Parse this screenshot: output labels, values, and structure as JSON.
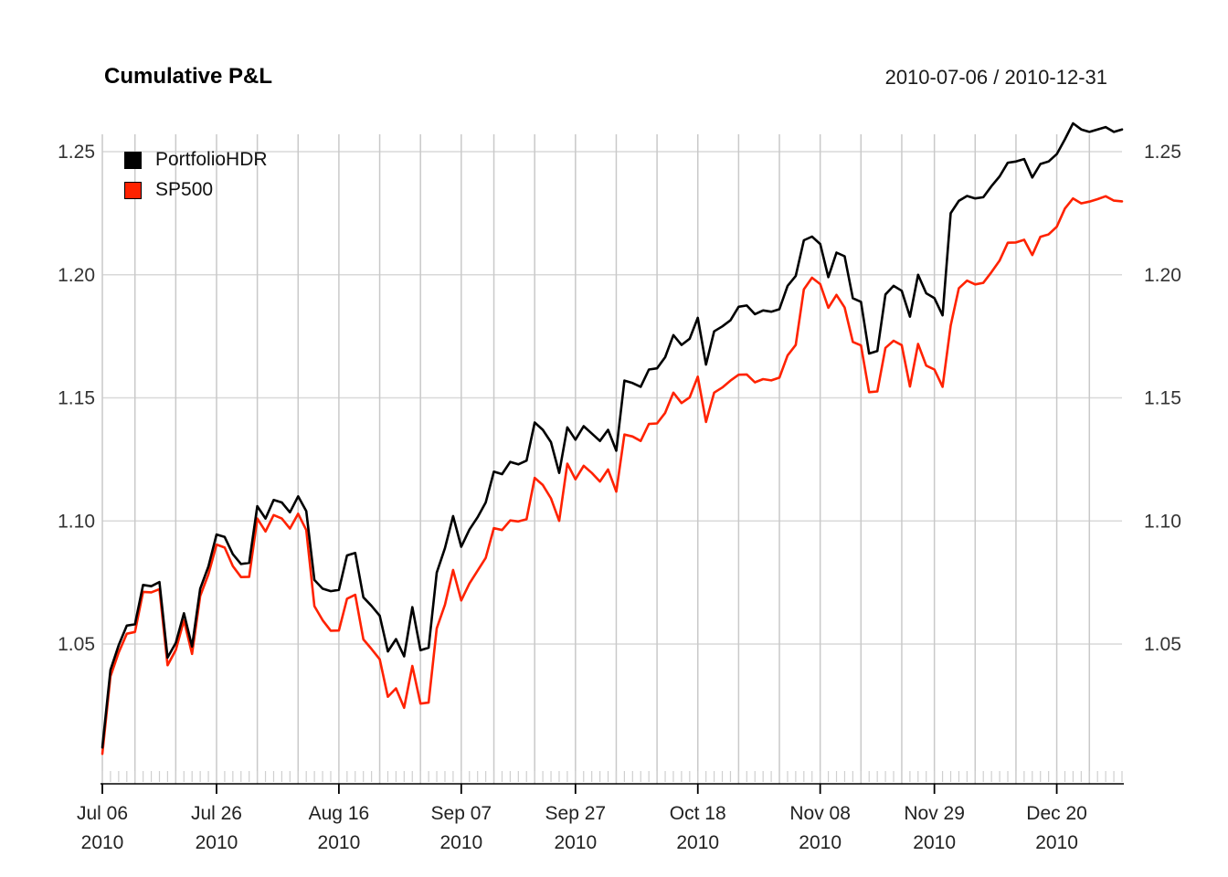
{
  "header": {
    "title": "Cumulative P&L",
    "date_range": "2010-07-06 / 2010-12-31"
  },
  "legend": {
    "items": [
      {
        "label": "PortfolioHDR",
        "color": "#000000"
      },
      {
        "label": "SP500",
        "color": "#ff2200"
      }
    ]
  },
  "chart_data": {
    "type": "line",
    "title": "Cumulative P&L",
    "subtitle": "2010-07-06 / 2010-12-31",
    "grid": true,
    "legend_position": "top-left",
    "ylim": [
      1.0,
      1.27
    ],
    "yticks": [
      {
        "value": 1.05,
        "label": "1.05"
      },
      {
        "value": 1.1,
        "label": "1.10"
      },
      {
        "value": 1.15,
        "label": "1.15"
      },
      {
        "value": 1.2,
        "label": "1.20"
      },
      {
        "value": 1.25,
        "label": "1.25"
      }
    ],
    "x_major_ticks": [
      {
        "index": 0,
        "line1": "Jul 06",
        "line2": "2010"
      },
      {
        "index": 14,
        "line1": "Jul 26",
        "line2": "2010"
      },
      {
        "index": 29,
        "line1": "Aug 16",
        "line2": "2010"
      },
      {
        "index": 44,
        "line1": "Sep 07",
        "line2": "2010"
      },
      {
        "index": 58,
        "line1": "Sep 27",
        "line2": "2010"
      },
      {
        "index": 73,
        "line1": "Oct 18",
        "line2": "2010"
      },
      {
        "index": 88,
        "line1": "Nov 08",
        "line2": "2010"
      },
      {
        "index": 102,
        "line1": "Nov 29",
        "line2": "2010"
      },
      {
        "index": 117,
        "line1": "Dec 20",
        "line2": "2010"
      }
    ],
    "x_gridline_indices": [
      0,
      4,
      9,
      14,
      19,
      24,
      29,
      34,
      39,
      44,
      48,
      53,
      58,
      63,
      68,
      73,
      78,
      83,
      88,
      93,
      98,
      102,
      107,
      112,
      117,
      121
    ],
    "x_dates": [
      "2010-07-06",
      "2010-07-07",
      "2010-07-08",
      "2010-07-09",
      "2010-07-12",
      "2010-07-13",
      "2010-07-14",
      "2010-07-15",
      "2010-07-16",
      "2010-07-19",
      "2010-07-20",
      "2010-07-21",
      "2010-07-22",
      "2010-07-23",
      "2010-07-26",
      "2010-07-27",
      "2010-07-28",
      "2010-07-29",
      "2010-07-30",
      "2010-08-02",
      "2010-08-03",
      "2010-08-04",
      "2010-08-05",
      "2010-08-06",
      "2010-08-09",
      "2010-08-10",
      "2010-08-11",
      "2010-08-12",
      "2010-08-13",
      "2010-08-16",
      "2010-08-17",
      "2010-08-18",
      "2010-08-19",
      "2010-08-20",
      "2010-08-23",
      "2010-08-24",
      "2010-08-25",
      "2010-08-26",
      "2010-08-27",
      "2010-08-30",
      "2010-08-31",
      "2010-09-01",
      "2010-09-02",
      "2010-09-03",
      "2010-09-07",
      "2010-09-08",
      "2010-09-09",
      "2010-09-10",
      "2010-09-13",
      "2010-09-14",
      "2010-09-15",
      "2010-09-16",
      "2010-09-17",
      "2010-09-20",
      "2010-09-21",
      "2010-09-22",
      "2010-09-23",
      "2010-09-24",
      "2010-09-27",
      "2010-09-28",
      "2010-09-29",
      "2010-09-30",
      "2010-10-01",
      "2010-10-04",
      "2010-10-05",
      "2010-10-06",
      "2010-10-07",
      "2010-10-08",
      "2010-10-11",
      "2010-10-12",
      "2010-10-13",
      "2010-10-14",
      "2010-10-15",
      "2010-10-18",
      "2010-10-19",
      "2010-10-20",
      "2010-10-21",
      "2010-10-22",
      "2010-10-25",
      "2010-10-26",
      "2010-10-27",
      "2010-10-28",
      "2010-10-29",
      "2010-11-01",
      "2010-11-02",
      "2010-11-03",
      "2010-11-04",
      "2010-11-05",
      "2010-11-08",
      "2010-11-09",
      "2010-11-10",
      "2010-11-11",
      "2010-11-12",
      "2010-11-15",
      "2010-11-16",
      "2010-11-17",
      "2010-11-18",
      "2010-11-19",
      "2010-11-22",
      "2010-11-23",
      "2010-11-24",
      "2010-11-26",
      "2010-11-29",
      "2010-11-30",
      "2010-12-01",
      "2010-12-02",
      "2010-12-03",
      "2010-12-06",
      "2010-12-07",
      "2010-12-08",
      "2010-12-09",
      "2010-12-10",
      "2010-12-13",
      "2010-12-14",
      "2010-12-15",
      "2010-12-16",
      "2010-12-17",
      "2010-12-20",
      "2010-12-21",
      "2010-12-22",
      "2010-12-23",
      "2010-12-27",
      "2010-12-28",
      "2010-12-29",
      "2010-12-30",
      "2010-12-31"
    ],
    "series": [
      {
        "name": "PortfolioHDR",
        "color": "#000000",
        "values": [
          1.008,
          1.0395,
          1.0495,
          1.0575,
          1.058,
          1.074,
          1.0735,
          1.0752,
          1.0445,
          1.0505,
          1.0625,
          1.049,
          1.0725,
          1.0815,
          1.0945,
          1.0935,
          1.0865,
          1.0825,
          1.083,
          1.106,
          1.101,
          1.1085,
          1.1075,
          1.1035,
          1.11,
          1.104,
          1.076,
          1.0725,
          1.0715,
          1.072,
          1.086,
          1.087,
          1.069,
          1.0655,
          1.0615,
          1.047,
          1.052,
          1.045,
          1.065,
          1.0475,
          1.0485,
          1.079,
          1.089,
          1.102,
          1.0895,
          1.0965,
          1.1015,
          1.1075,
          1.12,
          1.119,
          1.124,
          1.123,
          1.1245,
          1.14,
          1.137,
          1.132,
          1.1195,
          1.138,
          1.133,
          1.1385,
          1.1355,
          1.1325,
          1.137,
          1.1285,
          1.157,
          1.156,
          1.1545,
          1.1615,
          1.162,
          1.1665,
          1.1755,
          1.1715,
          1.174,
          1.1825,
          1.1635,
          1.177,
          1.179,
          1.1815,
          1.187,
          1.1875,
          1.184,
          1.1855,
          1.185,
          1.186,
          1.1955,
          1.1995,
          1.214,
          1.2155,
          1.2125,
          1.199,
          1.209,
          1.2075,
          1.1905,
          1.189,
          1.168,
          1.169,
          1.192,
          1.1955,
          1.1935,
          1.183,
          1.2,
          1.1925,
          1.1905,
          1.1835,
          1.225,
          1.23,
          1.232,
          1.231,
          1.2315,
          1.236,
          1.24,
          1.2455,
          1.246,
          1.247,
          1.2395,
          1.245,
          1.246,
          1.249,
          1.255,
          1.2615,
          1.259,
          1.258,
          1.259,
          1.26,
          1.258,
          1.259
        ]
      },
      {
        "name": "SP500",
        "color": "#ff2200",
        "values": [
          1.0054,
          1.0369,
          1.0466,
          1.0542,
          1.0549,
          1.0712,
          1.071,
          1.0723,
          1.0414,
          1.0476,
          1.0596,
          1.046,
          1.0695,
          1.0783,
          1.0904,
          1.0892,
          1.0817,
          1.0772,
          1.0773,
          1.101,
          1.0957,
          1.1024,
          1.101,
          1.0969,
          1.1029,
          1.0963,
          1.0654,
          1.0597,
          1.0554,
          1.0555,
          1.0684,
          1.07,
          1.0519,
          1.048,
          1.0438,
          1.0286,
          1.032,
          1.0241,
          1.0411,
          1.0258,
          1.0262,
          1.0564,
          1.066,
          1.0801,
          1.0677,
          1.0746,
          1.0798,
          1.085,
          1.0971,
          1.0963,
          1.1002,
          1.0998,
          1.1007,
          1.1175,
          1.1146,
          1.1092,
          1.1,
          1.1233,
          1.1169,
          1.1224,
          1.1195,
          1.116,
          1.1209,
          1.1119,
          1.1351,
          1.1343,
          1.1325,
          1.1394,
          1.1396,
          1.1439,
          1.1521,
          1.1479,
          1.1502,
          1.1586,
          1.1402,
          1.1521,
          1.1542,
          1.157,
          1.1594,
          1.1595,
          1.1563,
          1.1576,
          1.1571,
          1.1582,
          1.1672,
          1.1715,
          1.1941,
          1.1988,
          1.1962,
          1.1866,
          1.1918,
          1.1867,
          1.1727,
          1.1713,
          1.1523,
          1.1526,
          1.1703,
          1.1732,
          1.1714,
          1.1546,
          1.1719,
          1.1631,
          1.1615,
          1.1545,
          1.1794,
          1.1945,
          1.1976,
          1.1961,
          1.1967,
          1.2011,
          1.2058,
          1.213,
          1.2131,
          1.2142,
          1.208,
          1.2154,
          1.2164,
          1.2195,
          1.2269,
          1.231,
          1.229,
          1.2297,
          1.2307,
          1.2319,
          1.2301,
          1.2298
        ]
      }
    ],
    "colors": {
      "h_grid": "#d9d9d9",
      "v_grid": "#c9c9c9",
      "minor_tick": "#cfcfcf",
      "axis_line": "#000000",
      "axis_text": "#333333"
    }
  }
}
